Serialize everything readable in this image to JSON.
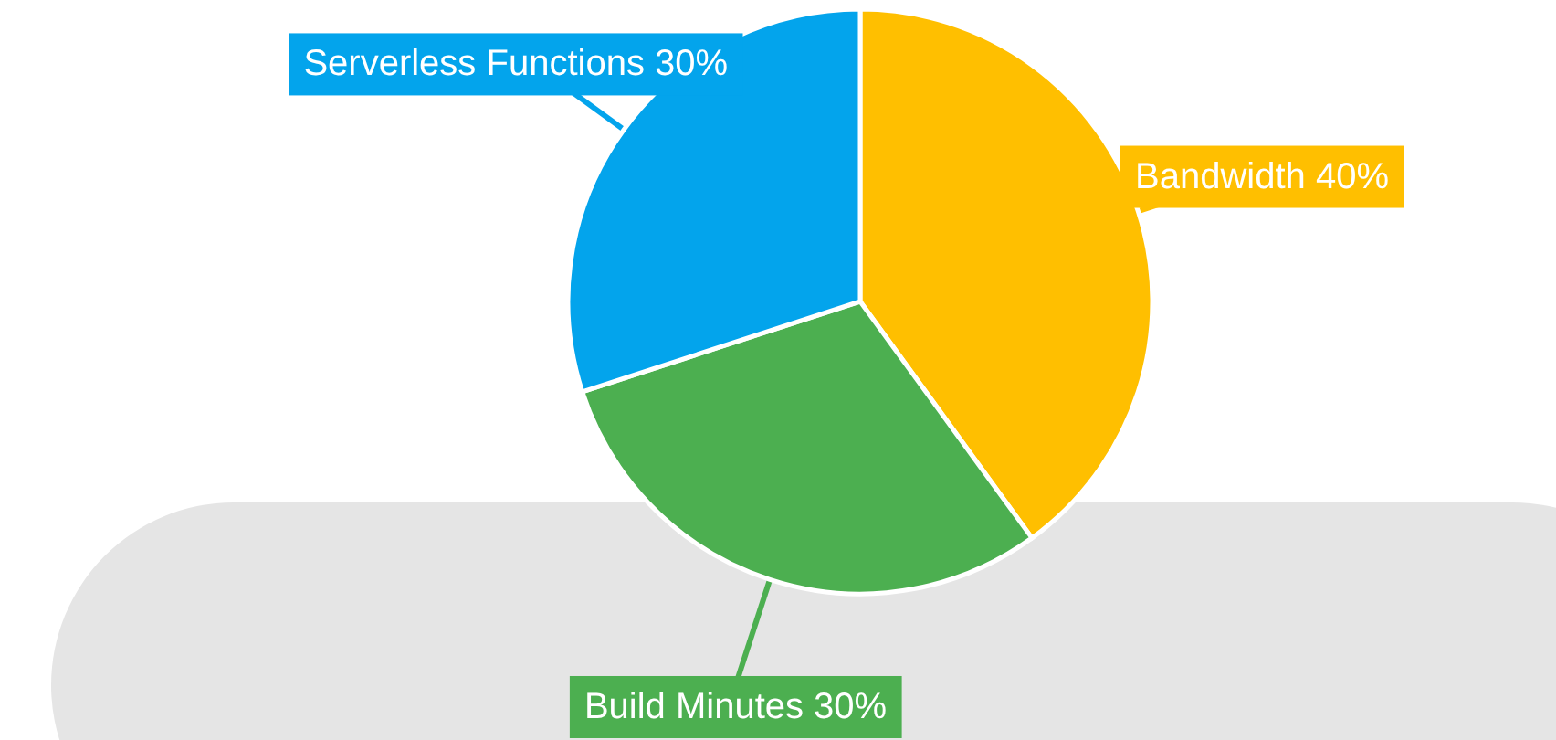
{
  "chart_data": {
    "type": "pie",
    "categories": [
      "Bandwidth",
      "Build Minutes",
      "Serverless Functions"
    ],
    "values": [
      40,
      30,
      30
    ],
    "value_labels": [
      "40%",
      "30%",
      "30%"
    ],
    "colors": [
      "#ffbf00",
      "#4caf50",
      "#03a4ec"
    ]
  }
}
